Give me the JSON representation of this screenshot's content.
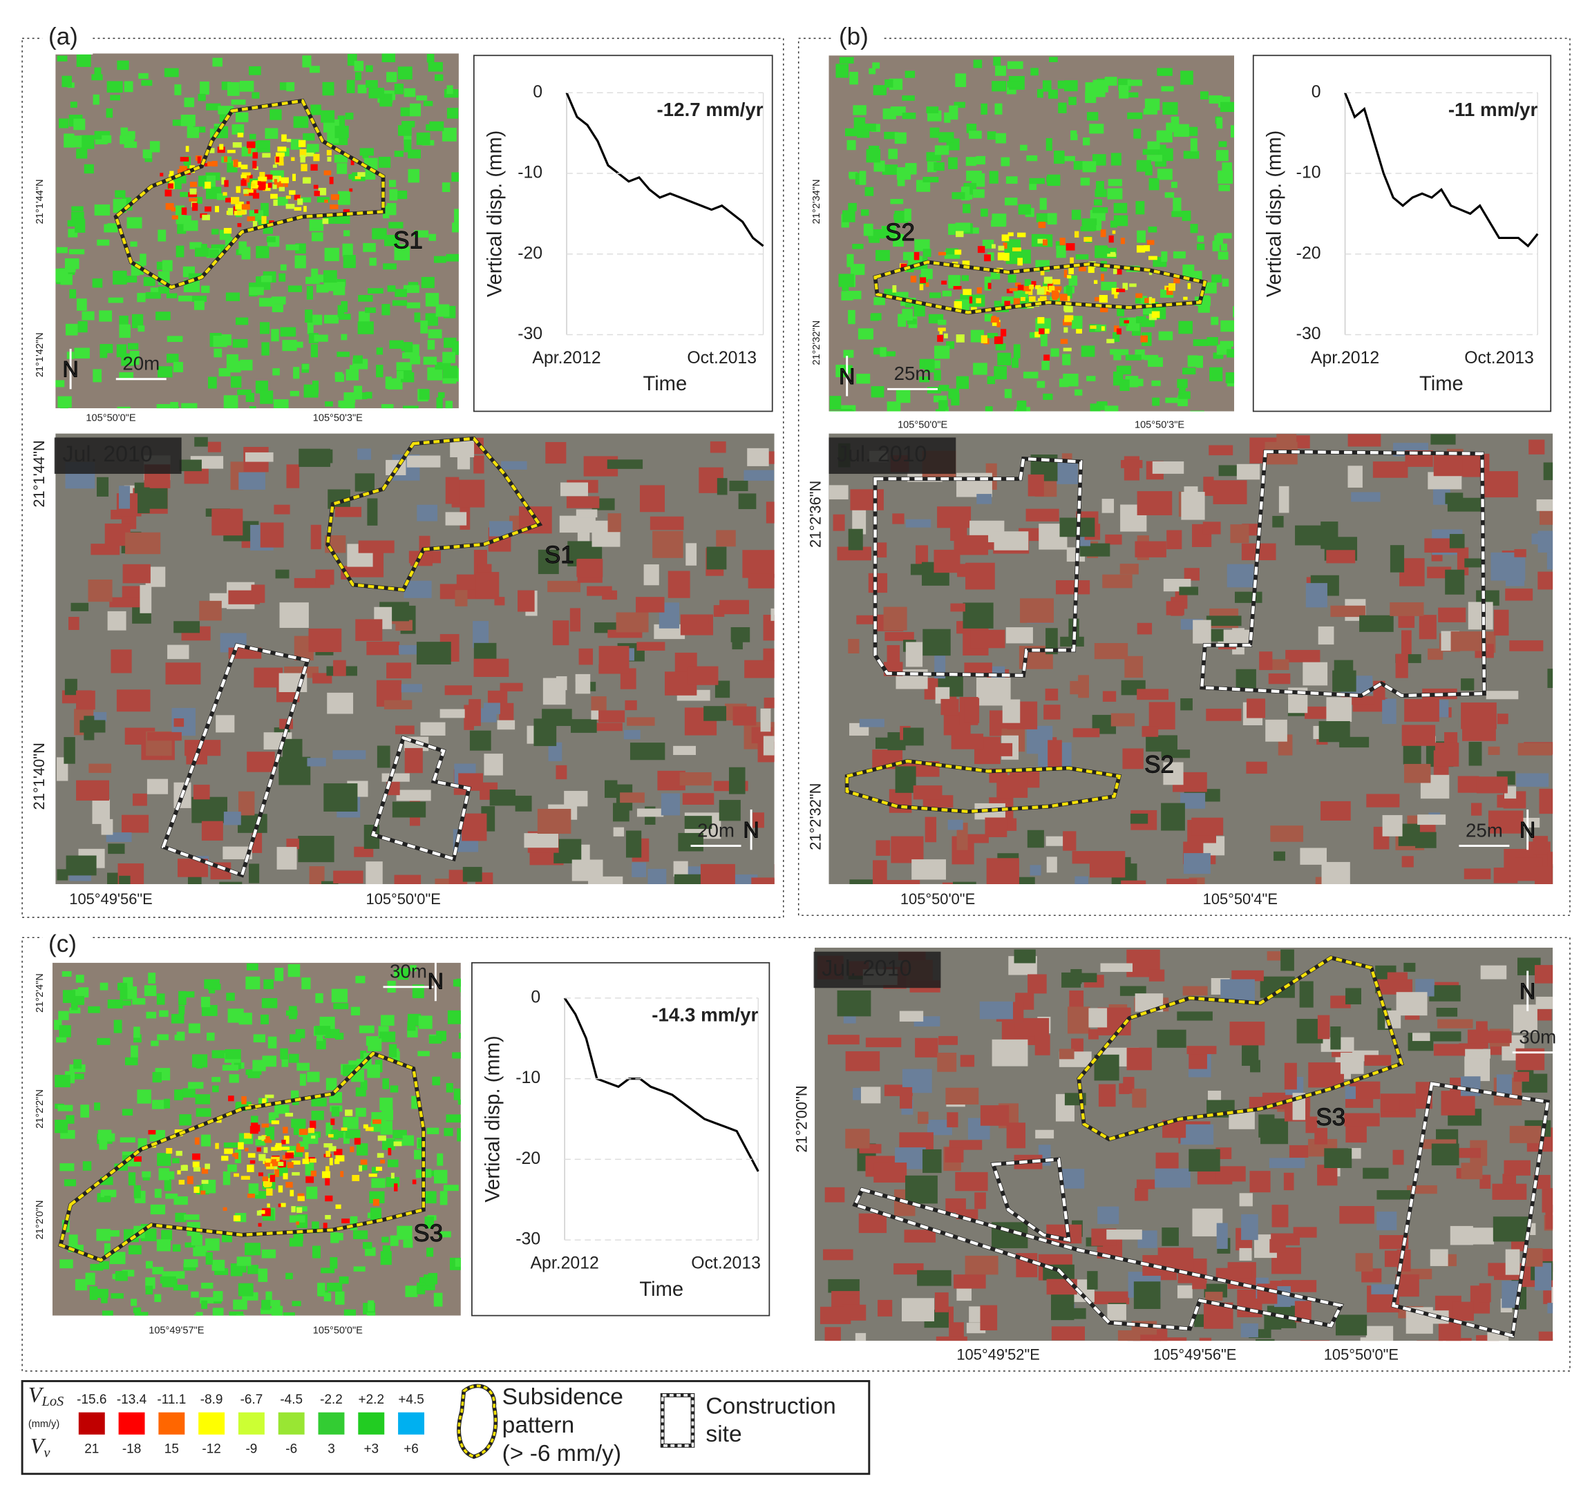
{
  "chart_data": [
    {
      "type": "line",
      "annotation": "-12.7 mm/yr",
      "x_label": "Time",
      "y_label": "Vertical disp. (mm)",
      "categories": [
        "Apr.2012",
        null,
        null,
        null,
        null,
        null,
        null,
        null,
        null,
        null,
        null,
        null,
        null,
        null,
        null,
        "Oct.2013",
        null,
        null,
        null,
        null
      ],
      "values": [
        0,
        -3,
        -4,
        -6,
        -9,
        -10,
        -11,
        -10.5,
        -12,
        -13,
        -12.5,
        -13,
        -13.5,
        -14,
        -14.5,
        -14,
        -15,
        -16,
        -18,
        -19
      ],
      "color": "#000000",
      "ylim": [
        -30,
        0
      ],
      "yticks": [
        0,
        -10,
        -20,
        -30
      ],
      "grid": true
    },
    {
      "type": "line",
      "annotation": "-11 mm/yr",
      "x_label": "Time",
      "y_label": "Vertical disp. (mm)",
      "categories": [
        "Apr.2012",
        null,
        null,
        null,
        null,
        null,
        null,
        null,
        null,
        null,
        null,
        null,
        null,
        null,
        null,
        null,
        "Oct.2013",
        null,
        null,
        null,
        null
      ],
      "values": [
        0,
        -3,
        -2,
        -6,
        -10,
        -13,
        -14,
        -13,
        -12.5,
        -13,
        -12,
        -14,
        -14.5,
        -15,
        -14,
        -16,
        -18,
        -18,
        -18,
        -19,
        -17.5
      ],
      "color": "#000000",
      "ylim": [
        -30,
        0
      ],
      "yticks": [
        0,
        -10,
        -20,
        -30
      ],
      "grid": true
    },
    {
      "type": "line",
      "annotation": "-14.3 mm/yr",
      "x_label": "Time",
      "y_label": "Vertical disp. (mm)",
      "categories": [
        "Apr.2012",
        null,
        null,
        null,
        null,
        null,
        null,
        null,
        null,
        null,
        null,
        null,
        null,
        null,
        null,
        "Oct.2013",
        null,
        null,
        null
      ],
      "values": [
        0,
        -2,
        -5,
        -10,
        -10.5,
        -11,
        -10,
        -10,
        -11,
        -11.5,
        -12,
        -13,
        -14,
        -15,
        -15.5,
        -16,
        -16.5,
        -19,
        -21.5
      ],
      "color": "#000000",
      "ylim": [
        -30,
        0
      ],
      "yticks": [
        0,
        -10,
        -20,
        -30
      ],
      "grid": true
    }
  ],
  "panels": [
    {
      "label": "(a)",
      "site": "S1",
      "date": "Jul. 2010",
      "north": "N",
      "inset_scale": "20m",
      "photo_scale": "20m",
      "inset_lat": [
        "21°1'44\"N",
        "21°1'42\"N"
      ],
      "inset_lon": [
        "105°50'0\"E",
        "105°50'3\"E"
      ],
      "photo_lat": [
        "21°1'44\"N",
        "21°1'40\"N"
      ],
      "photo_lon": [
        "105°49'56\"E",
        "105°50'0\"E"
      ]
    },
    {
      "label": "(b)",
      "site": "S2",
      "date": "Jul. 2010",
      "north": "N",
      "inset_scale": "25m",
      "photo_scale": "25m",
      "inset_lat": [
        "21°2'34\"N",
        "21°2'32\"N"
      ],
      "inset_lon": [
        "105°50'0\"E",
        "105°50'3\"E"
      ],
      "photo_lat": [
        "21°2'36\"N",
        "21°2'32\"N"
      ],
      "photo_lon": [
        "105°50'0\"E",
        "105°50'4\"E"
      ]
    },
    {
      "label": "(c)",
      "site": "S3",
      "date": "Jul. 2010",
      "north": "N",
      "inset_scale": "30m",
      "photo_scale": "30m",
      "inset_lat": [
        "21°2'4\"N",
        "21°2'2\"N",
        "21°2'0\"N"
      ],
      "inset_lon": [
        "105°49'57\"E",
        "105°50'0\"E"
      ],
      "photo_lat": [
        "21°2'00\"N"
      ],
      "photo_lon": [
        "105°49'52\"E",
        "105°49'56\"E",
        "105°50'0\"E"
      ]
    }
  ],
  "legend": {
    "symbol_top": {
      "main": "V",
      "sub": "LoS"
    },
    "unit": "(mm/y)",
    "symbol_bottom": {
      "main": "V",
      "sub": "v"
    },
    "classes": [
      {
        "top": "-15.6",
        "bottom": "21",
        "color": "#c00000"
      },
      {
        "top": "-13.4",
        "bottom": "-18",
        "color": "#ff0000"
      },
      {
        "top": "-11.1",
        "bottom": "15",
        "color": "#ff6600"
      },
      {
        "top": "-8.9",
        "bottom": "-12",
        "color": "#ffff00"
      },
      {
        "top": "-6.7",
        "bottom": "-9",
        "color": "#ccff33"
      },
      {
        "top": "-4.5",
        "bottom": "-6",
        "color": "#99e633"
      },
      {
        "top": "-2.2",
        "bottom": "3",
        "color": "#33cc33"
      },
      {
        "top": "+2.2",
        "bottom": "+3",
        "color": "#22cc22"
      },
      {
        "top": "+4.5",
        "bottom": "+6",
        "color": "#00b0f0"
      }
    ],
    "subsidence": [
      "Subsidence",
      "pattern",
      "(> -6 mm/y)"
    ],
    "construction": [
      "Construction",
      "site"
    ]
  }
}
